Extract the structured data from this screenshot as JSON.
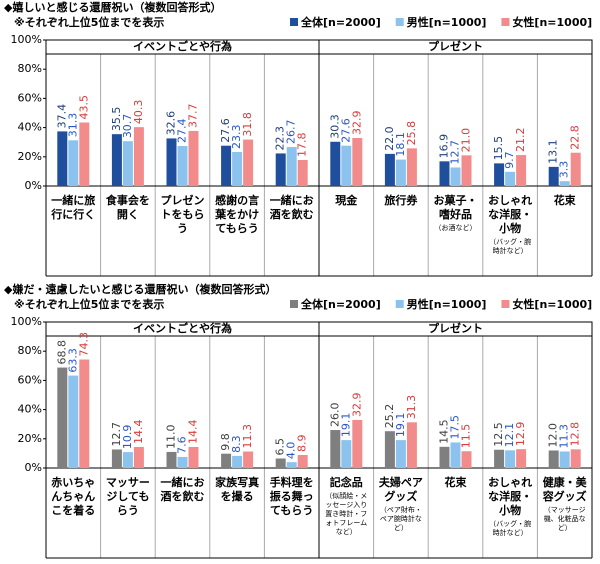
{
  "chart_data": [
    {
      "type": "bar",
      "title": "◆嬉しいと感じる還暦祝い（複数回答形式）",
      "subtitle": "※それぞれ上位5位までを表示",
      "groups": [
        "イベントごとや行為",
        "プレゼント"
      ],
      "categories": [
        "一緒に旅行に行く",
        "食事会を開く",
        "プレゼントをもらう",
        "感謝の言葉をかけてもらう",
        "一緒にお酒を飲む",
        "現金",
        "旅行券",
        "お菓子・嗜好品",
        "おしゃれな洋服・小物",
        "花束"
      ],
      "notes": [
        null,
        null,
        null,
        null,
        null,
        null,
        null,
        "（お酒など）",
        "（バッグ・腕時計など）",
        null
      ],
      "series": [
        {
          "name": "全体[n=2000]",
          "color": "#1f4e9c",
          "label_color": "#1f3f7a",
          "values": [
            37.4,
            35.5,
            32.6,
            27.6,
            22.3,
            30.3,
            22.0,
            16.9,
            15.5,
            13.1
          ],
          "value_labels": [
            "37.4",
            "35.5",
            "32.6",
            "27.6",
            "22.3",
            "30.3",
            "22.0",
            "16.9",
            "15.5",
            "13.1"
          ]
        },
        {
          "name": "男性[n=1000]",
          "color": "#8cc3ee",
          "label_color": "#2a56c6",
          "values": [
            31.3,
            30.7,
            27.4,
            23.3,
            26.7,
            27.6,
            18.1,
            12.7,
            9.7,
            3.3
          ],
          "value_labels": [
            "31.3",
            "30.7",
            "27.4",
            "23.3",
            "26.7",
            "27.6",
            "18.1",
            "12.7",
            "9.7",
            "3.3"
          ]
        },
        {
          "name": "女性[n=1000]",
          "color": "#f28c8c",
          "label_color": "#d83c3c",
          "values": [
            43.5,
            40.3,
            37.7,
            31.8,
            17.8,
            32.9,
            25.8,
            21.0,
            21.2,
            22.8
          ],
          "value_labels": [
            "43.5",
            "40.3",
            "37.7",
            "31.8",
            "17.8",
            "32.9",
            "25.8",
            "21.0",
            "21.2",
            "22.8"
          ]
        }
      ],
      "ylim": [
        0,
        100
      ],
      "yticks": [
        {
          "value": 0,
          "label": "0%"
        },
        {
          "value": 20,
          "label": "20%"
        },
        {
          "value": 40,
          "label": "40%"
        },
        {
          "value": 60,
          "label": "60%"
        },
        {
          "value": 80,
          "label": "80%"
        },
        {
          "value": 100,
          "label": "100%"
        }
      ]
    },
    {
      "type": "bar",
      "title": "◆嫌だ・遠慮したいと感じる還暦祝い（複数回答形式）",
      "subtitle": "※それぞれ上位5位までを表示",
      "groups": [
        "イベントごとや行為",
        "プレゼント"
      ],
      "categories": [
        "赤いちゃんちゃんこを着る",
        "マッサージしてもらう",
        "一緒にお酒を飲む",
        "家族写真を撮る",
        "手料理を振る舞ってもらう",
        "記念品",
        "夫婦ペアグッズ",
        "花束",
        "おしゃれな洋服・小物",
        "健康・美容グッズ"
      ],
      "notes": [
        null,
        null,
        null,
        null,
        null,
        "（似顔絵・メッセージ入り置き時計・フォトフレームなど）",
        "（ペア財布・ペア腕時計など）",
        null,
        "（バッグ・腕時計など）",
        "（マッサージ機、化粧品など）"
      ],
      "series": [
        {
          "name": "全体[n=2000]",
          "color": "#7f7f7f",
          "label_color": "#404040",
          "values": [
            68.8,
            12.7,
            11.0,
            9.8,
            6.5,
            26.0,
            25.2,
            14.5,
            12.5,
            12.0
          ],
          "value_labels": [
            "68.8",
            "12.7",
            "11.0",
            "9.8",
            "6.5",
            "26.0",
            "25.2",
            "14.5",
            "12.5",
            "12.0"
          ]
        },
        {
          "name": "男性[n=1000]",
          "color": "#8cc3ee",
          "label_color": "#2a56c6",
          "values": [
            63.3,
            10.9,
            7.6,
            8.3,
            4.0,
            19.1,
            19.1,
            17.5,
            12.1,
            11.3
          ],
          "value_labels": [
            "63.3",
            "10.9",
            "7.6",
            "8.3",
            "4.0",
            "19.1",
            "19.1",
            "17.5",
            "12.1",
            "11.3"
          ]
        },
        {
          "name": "女性[n=1000]",
          "color": "#f28c8c",
          "label_color": "#d83c3c",
          "values": [
            74.3,
            14.4,
            14.4,
            11.3,
            8.9,
            32.9,
            31.3,
            11.5,
            12.9,
            12.8
          ],
          "value_labels": [
            "74.3",
            "14.4",
            "14.4",
            "11.3",
            "8.9",
            "32.9",
            "31.3",
            "11.5",
            "12.9",
            "12.8"
          ]
        }
      ],
      "ylim": [
        0,
        100
      ],
      "yticks": [
        {
          "value": 0,
          "label": "0%"
        },
        {
          "value": 20,
          "label": "20%"
        },
        {
          "value": 40,
          "label": "40%"
        },
        {
          "value": 60,
          "label": "60%"
        },
        {
          "value": 80,
          "label": "80%"
        },
        {
          "value": 100,
          "label": "100%"
        }
      ]
    }
  ]
}
